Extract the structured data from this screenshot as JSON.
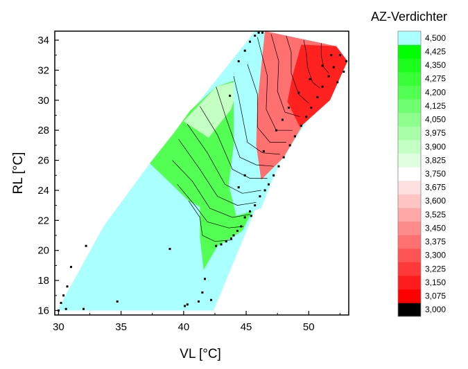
{
  "chart_data": {
    "type": "contour",
    "title": "",
    "xlabel": "VL [°C]",
    "ylabel": "RL [°C]",
    "xlim": [
      29.7,
      53.2
    ],
    "ylim": [
      15.7,
      34.6
    ],
    "x_ticks": [
      30,
      35,
      40,
      45,
      50
    ],
    "y_ticks": [
      16,
      18,
      20,
      22,
      24,
      26,
      28,
      30,
      32,
      34
    ],
    "grid": false,
    "colorbar": {
      "title": "AZ-Verdichter",
      "levels": [
        "3,000",
        "3,075",
        "3,150",
        "3,225",
        "3,300",
        "3,375",
        "3,450",
        "3,525",
        "3,600",
        "3,675",
        "3,750",
        "3,825",
        "3,900",
        "3,975",
        "4,050",
        "4,125",
        "4,200",
        "4,275",
        "4,350",
        "4,425",
        "4,500"
      ],
      "level_values": [
        3.0,
        3.075,
        3.15,
        3.225,
        3.3,
        3.375,
        3.45,
        3.525,
        3.6,
        3.675,
        3.75,
        3.825,
        3.9,
        3.975,
        4.05,
        4.125,
        4.2,
        4.275,
        4.35,
        4.425,
        4.5
      ],
      "band_colors": [
        "#000000",
        "#ff0000",
        "#ff1c1c",
        "#ff3838",
        "#ff5454",
        "#ff7070",
        "#ff8c8c",
        "#ffa8a8",
        "#ffc4c4",
        "#ffe0e0",
        "#ffffff",
        "#e0ffe0",
        "#c4ffc4",
        "#a8ffa8",
        "#8cff8c",
        "#70ff70",
        "#54ff54",
        "#38ff38",
        "#1cff1c",
        "#00ff00",
        "#aaffff"
      ]
    },
    "region_colors": {
      "above_max": "#aaffff",
      "green_mid": "#54ff54",
      "green_light": "#c4ffc4",
      "red_mid": "#ff7070",
      "red_dark": "#ff2020"
    },
    "regions": [
      {
        "name": "domain",
        "level": "above_max",
        "points": [
          [
            29.9,
            16.0
          ],
          [
            42.4,
            16.0
          ],
          [
            46.6,
            24.5
          ],
          [
            53.1,
            32.6
          ],
          [
            52.2,
            33.6
          ],
          [
            46.5,
            34.6
          ],
          [
            45.7,
            34.6
          ],
          [
            37.3,
            25.8
          ],
          [
            33.6,
            21.6
          ]
        ]
      },
      {
        "name": "green-zone",
        "level": "green_mid",
        "points": [
          [
            37.3,
            25.8
          ],
          [
            40.4,
            23.3
          ],
          [
            41.3,
            22.9
          ],
          [
            41.3,
            20.9
          ],
          [
            41.6,
            18.7
          ],
          [
            42.7,
            20.3
          ],
          [
            44.7,
            21.3
          ],
          [
            46.6,
            24.5
          ],
          [
            48.5,
            27.3
          ],
          [
            46.5,
            32.0
          ],
          [
            42.6,
            30.9
          ],
          [
            40.5,
            29.3
          ],
          [
            39.3,
            27.9
          ]
        ]
      },
      {
        "name": "green-light-zone",
        "level": "green_light",
        "points": [
          [
            40.0,
            28.6
          ],
          [
            42.6,
            30.9
          ],
          [
            44.0,
            31.2
          ],
          [
            45.7,
            34.6
          ],
          [
            43.8,
            29.4
          ],
          [
            42.0,
            27.5
          ]
        ]
      },
      {
        "name": "white-zone",
        "level": "above_max",
        "points": [
          [
            44.0,
            31.2
          ],
          [
            45.7,
            34.6
          ],
          [
            46.5,
            34.6
          ],
          [
            48.6,
            27.8
          ],
          [
            46.2,
            22.8
          ],
          [
            44.2,
            22.3
          ],
          [
            43.6,
            24.4
          ],
          [
            44.0,
            27.0
          ]
        ]
      },
      {
        "name": "red-zone-light",
        "level": "red_mid",
        "points": [
          [
            46.5,
            34.6
          ],
          [
            52.2,
            33.6
          ],
          [
            53.1,
            32.6
          ],
          [
            50.4,
            29.6
          ],
          [
            48.0,
            26.2
          ],
          [
            46.2,
            24.7
          ],
          [
            45.8,
            27.0
          ],
          [
            45.9,
            29.8
          ]
        ]
      },
      {
        "name": "red-zone-dark",
        "level": "red_dark",
        "points": [
          [
            49.4,
            33.7
          ],
          [
            52.2,
            33.6
          ],
          [
            53.1,
            32.6
          ],
          [
            51.7,
            30.0
          ],
          [
            49.3,
            28.2
          ],
          [
            48.3,
            29.9
          ],
          [
            48.7,
            31.6
          ]
        ]
      }
    ],
    "contour_lines": [
      [
        [
          40.4,
          23.3
        ],
        [
          41.3,
          22.2
        ],
        [
          41.5,
          21.0
        ],
        [
          42.5,
          20.6
        ],
        [
          43.9,
          20.7
        ]
      ],
      [
        [
          39.5,
          24.4
        ],
        [
          40.9,
          23.0
        ],
        [
          41.9,
          21.9
        ],
        [
          43.6,
          21.5
        ],
        [
          44.8,
          21.6
        ]
      ],
      [
        [
          39.1,
          26.0
        ],
        [
          40.7,
          24.6
        ],
        [
          42.1,
          22.8
        ],
        [
          43.9,
          22.2
        ],
        [
          45.3,
          22.4
        ]
      ],
      [
        [
          39.6,
          27.4
        ],
        [
          41.3,
          25.4
        ],
        [
          42.7,
          23.6
        ],
        [
          44.3,
          23.0
        ],
        [
          45.8,
          23.2
        ]
      ],
      [
        [
          40.3,
          28.4
        ],
        [
          41.9,
          26.5
        ],
        [
          43.3,
          24.4
        ],
        [
          44.7,
          23.8
        ],
        [
          46.2,
          24.0
        ]
      ],
      [
        [
          41.3,
          29.6
        ],
        [
          42.7,
          27.7
        ],
        [
          43.9,
          25.4
        ],
        [
          45.3,
          24.8
        ],
        [
          46.7,
          24.8
        ]
      ],
      [
        [
          42.6,
          30.9
        ],
        [
          43.4,
          28.8
        ],
        [
          44.5,
          26.2
        ],
        [
          45.8,
          25.7
        ],
        [
          47.2,
          25.6
        ]
      ],
      [
        [
          44.0,
          31.6
        ],
        [
          44.4,
          30.2
        ],
        [
          45.1,
          27.2
        ],
        [
          46.3,
          26.5
        ],
        [
          47.7,
          26.4
        ]
      ],
      [
        [
          45.1,
          32.4
        ],
        [
          45.9,
          30.4
        ],
        [
          45.9,
          28.2
        ],
        [
          46.9,
          27.2
        ],
        [
          48.2,
          27.2
        ]
      ],
      [
        [
          45.9,
          34.2
        ],
        [
          46.7,
          31.6
        ],
        [
          46.6,
          29.4
        ],
        [
          47.4,
          28.0
        ],
        [
          48.7,
          28.0
        ]
      ],
      [
        [
          47.0,
          34.4
        ],
        [
          47.6,
          32.6
        ],
        [
          47.5,
          30.6
        ],
        [
          48.1,
          29.2
        ],
        [
          49.3,
          28.9
        ]
      ],
      [
        [
          48.2,
          34.3
        ],
        [
          48.6,
          33.2
        ],
        [
          48.6,
          31.8
        ],
        [
          49.2,
          30.4
        ],
        [
          50.0,
          29.8
        ]
      ],
      [
        [
          49.6,
          34.0
        ],
        [
          49.8,
          33.2
        ],
        [
          49.9,
          32.2
        ],
        [
          50.3,
          31.2
        ],
        [
          50.9,
          30.8
        ]
      ],
      [
        [
          51.0,
          33.8
        ],
        [
          51.0,
          33.0
        ],
        [
          51.2,
          32.2
        ],
        [
          51.6,
          31.8
        ]
      ]
    ],
    "scatter_points": [
      [
        30.0,
        16.0
      ],
      [
        30.2,
        16.5
      ],
      [
        30.4,
        17.0
      ],
      [
        30.7,
        17.6
      ],
      [
        31.0,
        18.9
      ],
      [
        32.2,
        20.3
      ],
      [
        30.6,
        16.1
      ],
      [
        32.0,
        16.1
      ],
      [
        34.7,
        16.6
      ],
      [
        38.9,
        20.1
      ],
      [
        40.1,
        16.3
      ],
      [
        40.3,
        16.4
      ],
      [
        41.2,
        16.6
      ],
      [
        41.5,
        17.2
      ],
      [
        41.7,
        18.1
      ],
      [
        42.2,
        16.7
      ],
      [
        42.6,
        20.3
      ],
      [
        43.0,
        20.4
      ],
      [
        43.4,
        20.6
      ],
      [
        43.8,
        20.8
      ],
      [
        44.0,
        21.0
      ],
      [
        44.3,
        21.3
      ],
      [
        44.6,
        21.6
      ],
      [
        44.9,
        22.2
      ],
      [
        45.3,
        22.6
      ],
      [
        45.7,
        23.0
      ],
      [
        46.1,
        23.6
      ],
      [
        46.5,
        24.0
      ],
      [
        46.8,
        24.4
      ],
      [
        47.2,
        25.0
      ],
      [
        47.6,
        25.6
      ],
      [
        48.0,
        26.2
      ],
      [
        48.5,
        27.0
      ],
      [
        48.9,
        27.6
      ],
      [
        49.4,
        28.3
      ],
      [
        49.8,
        28.9
      ],
      [
        50.2,
        29.5
      ],
      [
        50.7,
        30.2
      ],
      [
        51.1,
        30.9
      ],
      [
        51.6,
        31.6
      ],
      [
        52.0,
        32.2
      ],
      [
        52.5,
        33.0
      ],
      [
        53.0,
        32.6
      ],
      [
        52.8,
        31.9
      ],
      [
        52.3,
        31.2
      ],
      [
        44.4,
        24.2
      ],
      [
        44.9,
        25.0
      ],
      [
        45.4,
        22.3
      ],
      [
        46.4,
        26.6
      ],
      [
        47.4,
        28.0
      ],
      [
        47.9,
        28.7
      ],
      [
        48.4,
        29.5
      ],
      [
        49.2,
        30.5
      ],
      [
        50.1,
        31.4
      ],
      [
        51.1,
        32.3
      ],
      [
        51.8,
        33.0
      ],
      [
        43.7,
        30.3
      ],
      [
        44.4,
        32.6
      ],
      [
        44.9,
        33.3
      ],
      [
        45.3,
        33.9
      ],
      [
        45.7,
        34.3
      ],
      [
        46.0,
        34.5
      ],
      [
        46.3,
        34.5
      ]
    ]
  }
}
